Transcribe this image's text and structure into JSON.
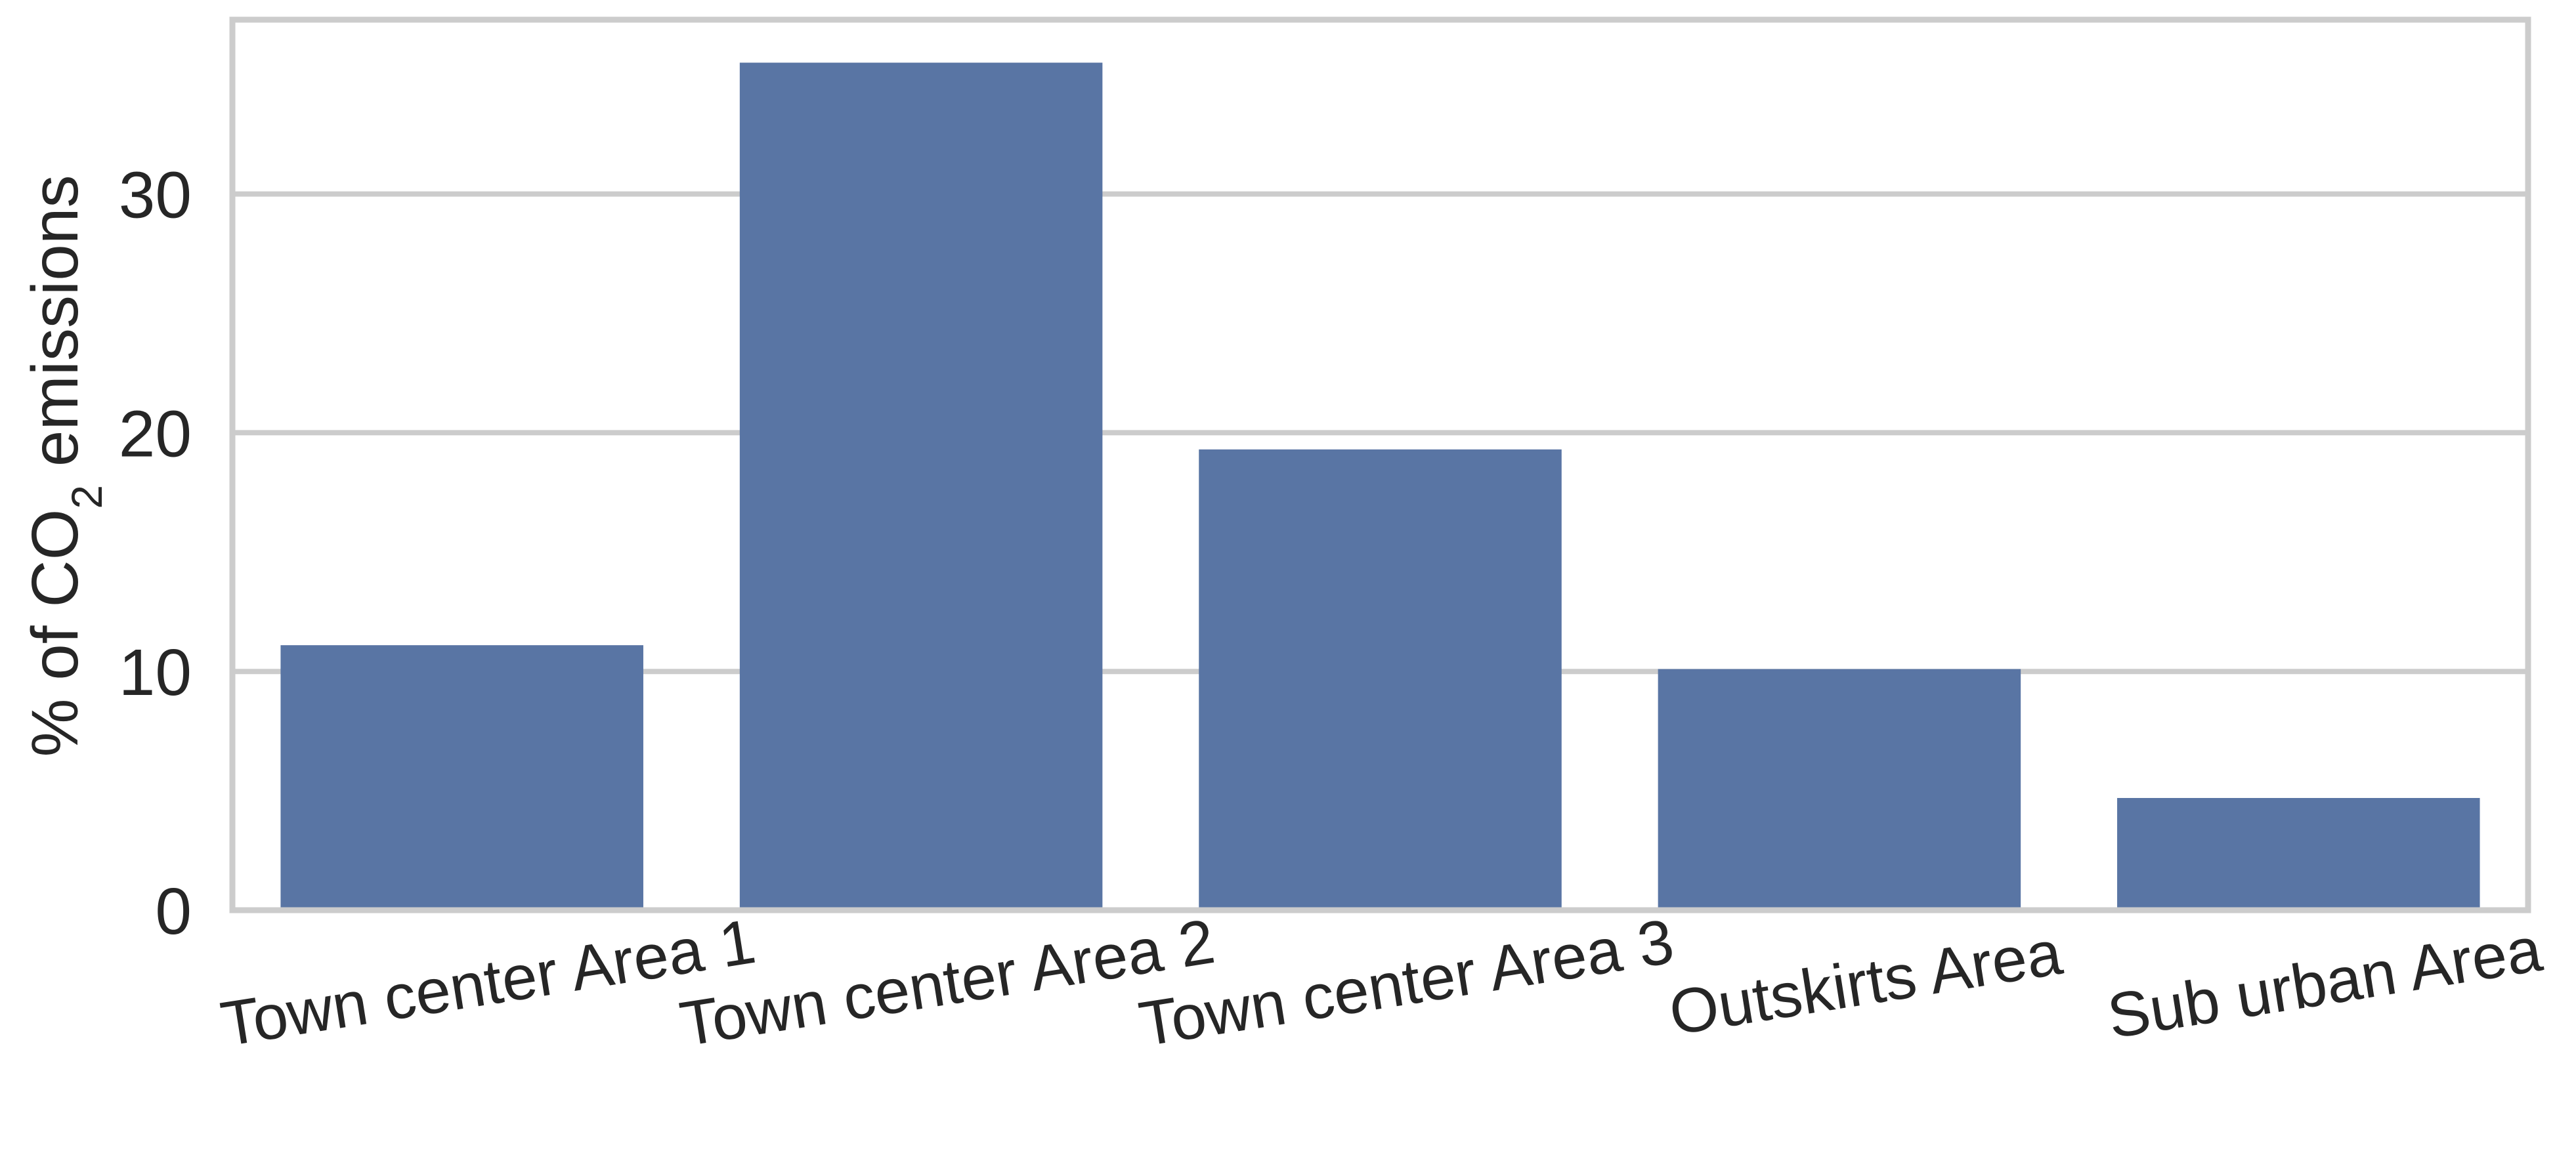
{
  "chart_data": {
    "type": "bar",
    "title": "",
    "xlabel": "",
    "ylabel": {
      "prefix": "% of CO",
      "subscript": "2",
      "suffix": " emissions"
    },
    "categories": [
      "Town center Area 1",
      "Town center Area 2",
      "Town center Area 3",
      "Outskirts Area",
      "Sub urban Area"
    ],
    "values": [
      11.1,
      35.5,
      19.3,
      10.1,
      4.7
    ],
    "ylim": [
      0,
      37.3
    ],
    "yticks": [
      0,
      10,
      20,
      30
    ],
    "grid": true,
    "bar_color": "#5975a4",
    "grid_color": "#cccccc",
    "spine_color": "#cccccc",
    "text_color": "#262626"
  }
}
